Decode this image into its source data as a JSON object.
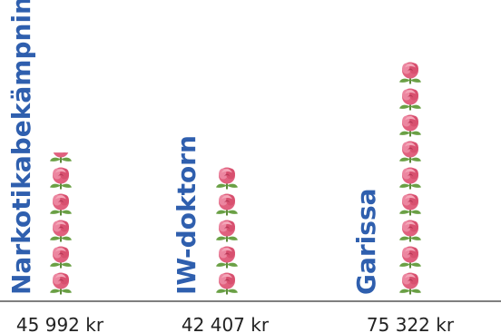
{
  "chart_data": {
    "type": "bar",
    "categories": [
      "Narkotikabekämpning",
      "IW-doktorn",
      "Garissa"
    ],
    "values": [
      45992,
      42407,
      75322
    ],
    "value_labels": [
      "45 992 kr",
      "42 407 kr",
      "75 322 kr"
    ],
    "title": "",
    "xlabel": "",
    "ylabel": "",
    "ylim": [
      0,
      80000
    ],
    "grid": false,
    "legend": "none",
    "marker_icon": "rose-icon",
    "label_color": "#2f5fae",
    "baseline_color": "#555555",
    "value_color": "#222222"
  }
}
